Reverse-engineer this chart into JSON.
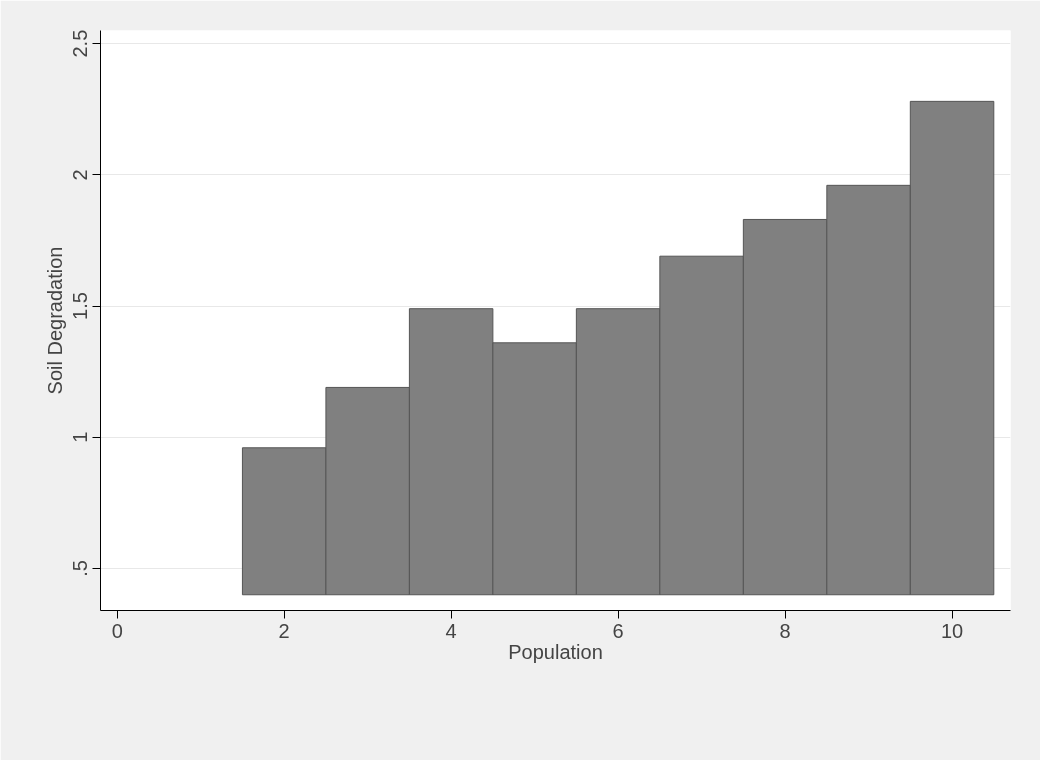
{
  "chart_data": {
    "type": "bar",
    "xlabel": "Population",
    "ylabel": "Soil Degradation",
    "x": [
      2,
      3,
      4,
      5,
      6,
      7,
      8,
      9,
      10
    ],
    "base": [
      0.4,
      0.4,
      0.4,
      0.4,
      0.4,
      0.4,
      0.4,
      0.4,
      0.4
    ],
    "values": [
      0.56,
      0.79,
      1.09,
      0.96,
      1.09,
      1.29,
      1.43,
      1.56,
      1.88
    ],
    "color": "#808080",
    "xlim": [
      -0.2,
      10.7
    ],
    "xticks": [
      0,
      2,
      4,
      6,
      8,
      10
    ],
    "ylim": [
      0.34,
      2.55
    ],
    "yticks": [
      {
        "value": 0.5,
        "label": ".5"
      },
      1,
      1.5,
      2,
      2.5
    ],
    "grid": "y"
  }
}
